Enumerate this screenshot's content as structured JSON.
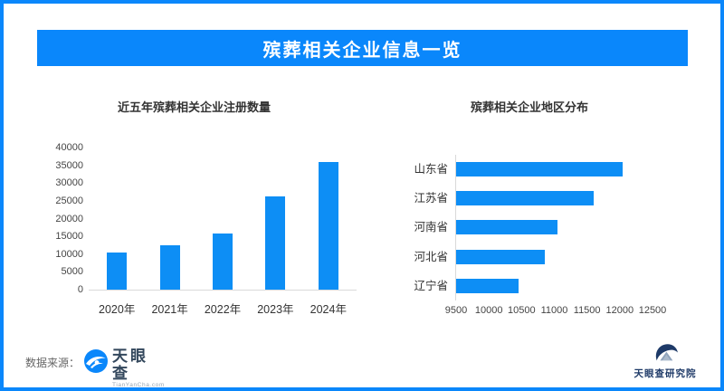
{
  "header": {
    "title": "殡葬相关企业信息一览"
  },
  "colors": {
    "primary_blue": "#0a87fb",
    "bar_blue": "#0d8ef5",
    "axis_gray": "#d9d9d9",
    "logo_navy": "#1e3a68",
    "wordmark_dark": "#33475c"
  },
  "chart_data": [
    {
      "type": "bar",
      "orientation": "vertical",
      "title": "近五年殡葬相关企业注册数量",
      "categories": [
        "2020年",
        "2021年",
        "2022年",
        "2023年",
        "2024年"
      ],
      "values": [
        10450,
        12450,
        15800,
        26200,
        35900
      ],
      "ylabel": "",
      "xlabel": "",
      "ylim": [
        0,
        40000
      ],
      "yticks": [
        0,
        5000,
        10000,
        15000,
        20000,
        25000,
        30000,
        35000,
        40000
      ],
      "grid": false,
      "legend": "none"
    },
    {
      "type": "bar",
      "orientation": "horizontal",
      "title": "殡葬相关企业地区分布",
      "categories": [
        "山东省",
        "江苏省",
        "河南省",
        "河北省",
        "辽宁省"
      ],
      "values": [
        12050,
        11600,
        11050,
        10850,
        10450
      ],
      "ylabel": "",
      "xlabel": "",
      "xlim": [
        9500,
        12500
      ],
      "xticks": [
        9500,
        10000,
        10500,
        11000,
        11500,
        12000,
        12500
      ],
      "grid": false,
      "legend": "none"
    }
  ],
  "footer": {
    "source_label": "数据来源：",
    "source_logo_text": "天眼查",
    "source_logo_sub": "TianYanCha.com",
    "right_logo_text": "天眼查研究院"
  }
}
